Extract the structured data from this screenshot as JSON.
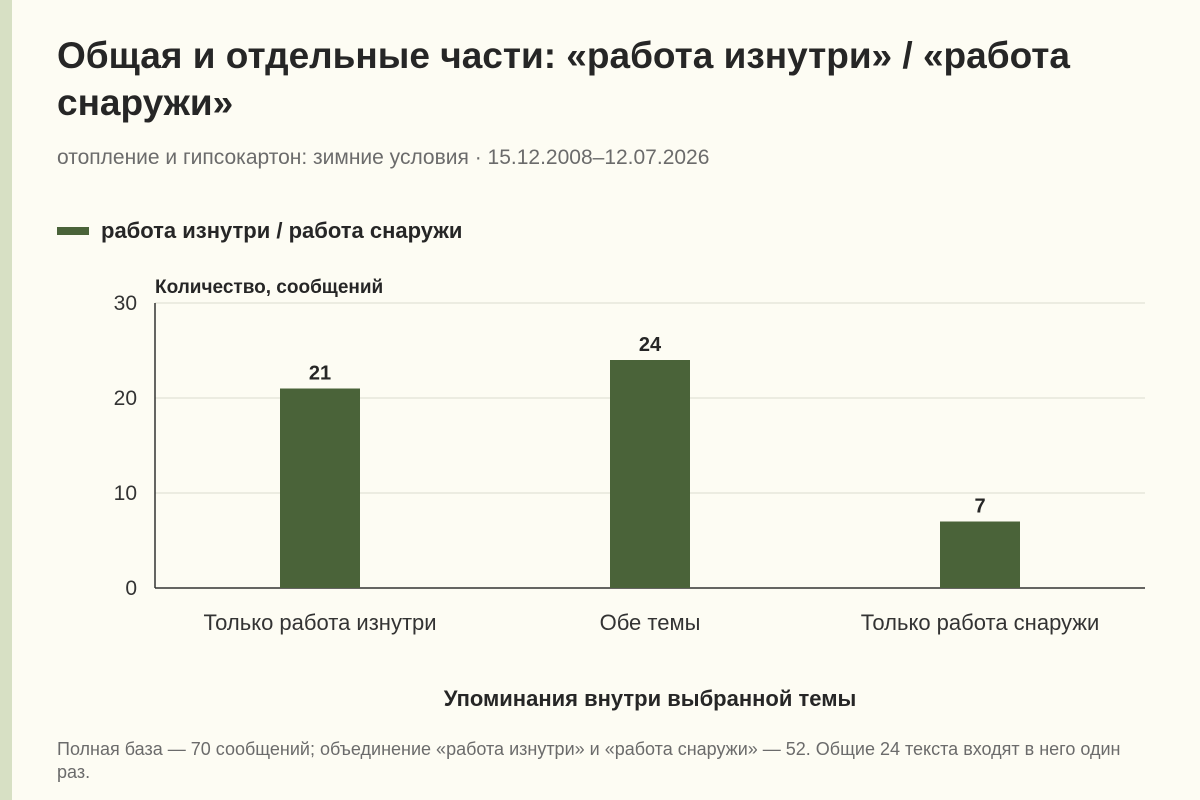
{
  "title": "Общая и отдельные части: «работа изнутри» / «работа снаружи»",
  "subtitle": "отопление и гипсокартон: зимние условия · 15.12.2008–12.07.2026",
  "legend": {
    "label": "работа изнутри / работа снаружи",
    "color": "#4a6339"
  },
  "colors": {
    "bar": "#4a6339",
    "grid": "#dcdccf",
    "axis": "#333333",
    "background": "#fdfcf3",
    "stripe": "#d7e0c4"
  },
  "chart_data": {
    "type": "bar",
    "categories": [
      "Только работа изнутри",
      "Обе темы",
      "Только работа снаружи"
    ],
    "series": [
      {
        "name": "работа изнутри / работа снаружи",
        "values": [
          21,
          24,
          7
        ]
      }
    ],
    "ylabel": "Количество, сообщений",
    "xlabel": "Упоминания внутри выбранной темы",
    "ylim": [
      0,
      30
    ],
    "yticks": [
      0,
      10,
      20,
      30
    ],
    "grid": true,
    "data_labels": true,
    "legend_position": "top-left"
  },
  "footnote": "Полная база — 70 сообщений; объединение «работа изнутри» и «работа снаружи» — 52. Общие 24 текста входят в него один раз."
}
